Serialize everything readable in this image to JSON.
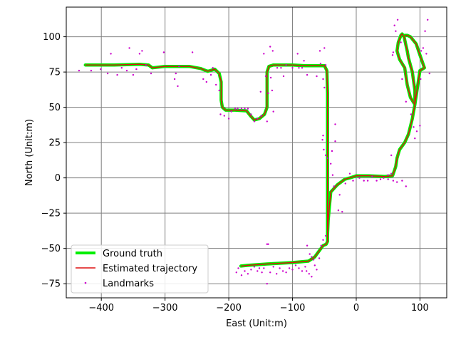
{
  "chart_data": {
    "type": "line",
    "xlabel": "East (Unit:m)",
    "ylabel": "North (Unit:m)",
    "xlim": [
      -455,
      142
    ],
    "ylim": [
      -85,
      121
    ],
    "xticks": [
      -400,
      -300,
      -200,
      -100,
      0,
      100
    ],
    "yticks": [
      -75,
      -50,
      -25,
      0,
      25,
      50,
      75,
      100
    ],
    "xtick_labels": [
      "−400",
      "−300",
      "−200",
      "−100",
      "0",
      "100"
    ],
    "ytick_labels": [
      "−75",
      "−50",
      "−25",
      "0",
      "25",
      "50",
      "75",
      "100"
    ],
    "grid": true,
    "legend": {
      "position": "lower-left"
    },
    "colors": {
      "ground_truth": "#00ee00",
      "estimated": "#dd1111",
      "landmarks": "#cc00cc",
      "grid": "#808080"
    },
    "series": [
      {
        "name": "Ground truth",
        "kind": "line",
        "points": [
          [
            -425,
            80
          ],
          [
            -380,
            80
          ],
          [
            -340,
            80.5
          ],
          [
            -326,
            80
          ],
          [
            -320,
            78
          ],
          [
            -300,
            79
          ],
          [
            -262,
            79
          ],
          [
            -244,
            77.5
          ],
          [
            -233,
            75.5
          ],
          [
            -222,
            77
          ],
          [
            -215,
            74
          ],
          [
            -212,
            68
          ],
          [
            -212,
            55
          ],
          [
            -210,
            50
          ],
          [
            -205,
            48
          ],
          [
            -190,
            48
          ],
          [
            -172,
            47.5
          ],
          [
            -166,
            44
          ],
          [
            -160,
            41
          ],
          [
            -152,
            42
          ],
          [
            -144,
            45
          ],
          [
            -140,
            50
          ],
          [
            -140,
            75
          ],
          [
            -137,
            79
          ],
          [
            -130,
            80
          ],
          [
            -100,
            80
          ],
          [
            -80,
            79.5
          ],
          [
            -50,
            79.5
          ],
          [
            -46,
            76
          ],
          [
            -45,
            60
          ],
          [
            -45,
            0
          ],
          [
            -45,
            -45
          ],
          [
            -47,
            -47
          ],
          [
            -52,
            -48
          ],
          [
            -57,
            -51
          ],
          [
            -65,
            -56
          ],
          [
            -75,
            -59
          ],
          [
            -100,
            -60
          ],
          [
            -140,
            -61
          ],
          [
            -170,
            -62
          ],
          [
            -181,
            -62.5
          ]
        ]
      },
      {
        "name": "Estimated trajectory",
        "kind": "line",
        "points": [
          [
            -45,
            -40
          ],
          [
            -44,
            -30
          ],
          [
            -40,
            -10
          ],
          [
            -30,
            -5
          ],
          [
            -18,
            -1
          ],
          [
            -10,
            0
          ],
          [
            0,
            1.5
          ],
          [
            20,
            1.5
          ],
          [
            45,
            1
          ],
          [
            57,
            1.5
          ],
          [
            62,
            8
          ],
          [
            64,
            14
          ],
          [
            68,
            20
          ],
          [
            76,
            25
          ],
          [
            82,
            31
          ],
          [
            88,
            42
          ],
          [
            92,
            52
          ],
          [
            92,
            62
          ],
          [
            88,
            75
          ],
          [
            82,
            85
          ],
          [
            80,
            90
          ],
          [
            75,
            100
          ],
          [
            72,
            102
          ],
          [
            70,
            101
          ],
          [
            66,
            96
          ],
          [
            64,
            90
          ],
          [
            68,
            84
          ],
          [
            76,
            78
          ],
          [
            78,
            72
          ],
          [
            80,
            66
          ],
          [
            85,
            57
          ],
          [
            92,
            52
          ],
          [
            100,
            76
          ],
          [
            107,
            78
          ],
          [
            100,
            87
          ],
          [
            94,
            95
          ],
          [
            85,
            100
          ],
          [
            80,
            101
          ],
          [
            76,
            101
          ]
        ]
      },
      {
        "name": "Landmarks",
        "kind": "scatter",
        "points": [
          [
            -435,
            76
          ],
          [
            -416,
            76
          ],
          [
            -401,
            77
          ],
          [
            -390,
            74
          ],
          [
            -385,
            88
          ],
          [
            -375,
            73
          ],
          [
            -368,
            78
          ],
          [
            -360,
            76
          ],
          [
            -356,
            92
          ],
          [
            -350,
            73
          ],
          [
            -345,
            77
          ],
          [
            -340,
            88
          ],
          [
            -336,
            90
          ],
          [
            -330,
            80
          ],
          [
            -322,
            74
          ],
          [
            -302,
            89
          ],
          [
            -285,
            70
          ],
          [
            -283,
            74
          ],
          [
            -280,
            65
          ],
          [
            -278,
            79
          ],
          [
            -257,
            89
          ],
          [
            -240,
            70
          ],
          [
            -235,
            68
          ],
          [
            -228,
            73
          ],
          [
            -225,
            78
          ],
          [
            -220,
            66
          ],
          [
            -215,
            62
          ],
          [
            -213,
            45
          ],
          [
            -207,
            44
          ],
          [
            -200,
            42
          ],
          [
            -196,
            47
          ],
          [
            -190,
            49
          ],
          [
            -186,
            49
          ],
          [
            -180,
            49
          ],
          [
            -175,
            49
          ],
          [
            -170,
            49
          ],
          [
            -165,
            45
          ],
          [
            -160,
            40
          ],
          [
            -155,
            42
          ],
          [
            -150,
            61
          ],
          [
            -149,
            44
          ],
          [
            -145,
            88
          ],
          [
            -142,
            72
          ],
          [
            -140,
            40
          ],
          [
            -138,
            60
          ],
          [
            -135,
            93
          ],
          [
            -134,
            71
          ],
          [
            -132,
            62
          ],
          [
            -131,
            90
          ],
          [
            -130,
            47
          ],
          [
            -124,
            78
          ],
          [
            -118,
            78
          ],
          [
            -114,
            72
          ],
          [
            -110,
            80
          ],
          [
            -100,
            78
          ],
          [
            -92,
            88
          ],
          [
            -90,
            78
          ],
          [
            -85,
            78
          ],
          [
            -82,
            83
          ],
          [
            -77,
            73
          ],
          [
            -62,
            72
          ],
          [
            -57,
            90
          ],
          [
            -56,
            81
          ],
          [
            -50,
            92
          ],
          [
            -48,
            80
          ],
          [
            -52,
            70
          ],
          [
            -50,
            64
          ],
          [
            -52,
            30
          ],
          [
            -53,
            27
          ],
          [
            -51,
            20
          ],
          [
            -48,
            16
          ],
          [
            -45,
            14
          ],
          [
            -40,
            10
          ],
          [
            -38,
            19
          ],
          [
            -33,
            38
          ],
          [
            -33,
            26
          ],
          [
            -37,
            2
          ],
          [
            -35,
            -6
          ],
          [
            -28,
            -23
          ],
          [
            -26,
            -12
          ],
          [
            -22,
            -24
          ],
          [
            -17,
            -4
          ],
          [
            -10,
            3
          ],
          [
            -5,
            -2
          ],
          [
            5,
            0
          ],
          [
            12,
            -2
          ],
          [
            18,
            -2
          ],
          [
            25,
            1
          ],
          [
            32,
            -2
          ],
          [
            38,
            -1
          ],
          [
            43,
            0
          ],
          [
            50,
            -1
          ],
          [
            50,
            2
          ],
          [
            55,
            3
          ],
          [
            58,
            -2
          ],
          [
            64,
            -3
          ],
          [
            72,
            -2
          ],
          [
            78,
            -6
          ],
          [
            55,
            16
          ],
          [
            57,
            87
          ],
          [
            58,
            89
          ],
          [
            60,
            108
          ],
          [
            62,
            104
          ],
          [
            65,
            112
          ],
          [
            70,
            96
          ],
          [
            72,
            70
          ],
          [
            78,
            54
          ],
          [
            86,
            45
          ],
          [
            90,
            36
          ],
          [
            92,
            28
          ],
          [
            95,
            33
          ],
          [
            100,
            37
          ],
          [
            101,
            70
          ],
          [
            102,
            90
          ],
          [
            105,
            92
          ],
          [
            110,
            88
          ],
          [
            115,
            74
          ],
          [
            108,
            104
          ],
          [
            112,
            112
          ],
          [
            -77,
            -48
          ],
          [
            -73,
            -54
          ],
          [
            -70,
            -56
          ],
          [
            -67,
            -58
          ],
          [
            -65,
            -62
          ],
          [
            -62,
            -65
          ],
          [
            -58,
            -57
          ],
          [
            -55,
            -48
          ],
          [
            -52,
            -44
          ],
          [
            -48,
            -41
          ],
          [
            -70,
            -70
          ],
          [
            -74,
            -68
          ],
          [
            -78,
            -66
          ],
          [
            -80,
            -63
          ],
          [
            -85,
            -66
          ],
          [
            -90,
            -64
          ],
          [
            -95,
            -62
          ],
          [
            -100,
            -65
          ],
          [
            -105,
            -64
          ],
          [
            -110,
            -67
          ],
          [
            -115,
            -66
          ],
          [
            -120,
            -64
          ],
          [
            -125,
            -68
          ],
          [
            -130,
            -63
          ],
          [
            -135,
            -67
          ],
          [
            -140,
            -75
          ],
          [
            -145,
            -64
          ],
          [
            -148,
            -67
          ],
          [
            -152,
            -64
          ],
          [
            -155,
            -66
          ],
          [
            -160,
            -63
          ],
          [
            -165,
            -65
          ],
          [
            -170,
            -68
          ],
          [
            -175,
            -66
          ],
          [
            -180,
            -69
          ],
          [
            -185,
            -64
          ],
          [
            -188,
            -67
          ],
          [
            -140,
            -47
          ],
          [
            -138,
            -47
          ]
        ]
      }
    ]
  }
}
